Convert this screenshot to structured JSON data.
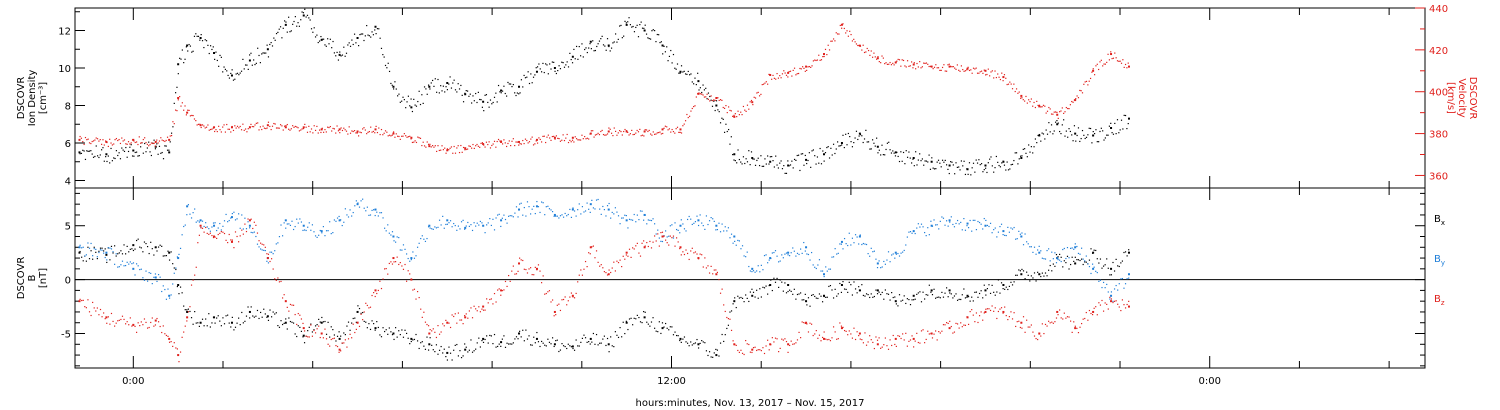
{
  "figure": {
    "xlabel": "hours:minutes, Nov. 13, 2017 – Nov. 15, 2017",
    "x_ticks": [
      "0:00",
      "12:00",
      "0:00"
    ]
  },
  "chart_data": [
    {
      "type": "scatter",
      "panel": "plasma",
      "x_unit": "hours",
      "xlim": [
        -1.3,
        28.8
      ],
      "ylabel_left": [
        "DSCOVR",
        "Ion Density",
        "[cm⁻³]"
      ],
      "ylabel_right": [
        "DSCOVR",
        "Velocity",
        "[km/s]"
      ],
      "ylim_left": [
        3.6,
        13.2
      ],
      "ylim_right": [
        354,
        440
      ],
      "yticks_left": [
        "4",
        "6",
        "8",
        "10",
        "12"
      ],
      "yticks_right": [
        "360",
        "380",
        "400",
        "420",
        "440"
      ],
      "colors": {
        "density": "#000000",
        "velocity": "#e0201c"
      },
      "series": [
        {
          "name": "density",
          "axis": "left",
          "x": [
            -1.2,
            -0.6,
            0,
            0.5,
            0.8,
            1.0,
            1.2,
            1.5,
            1.8,
            2.2,
            2.6,
            3.0,
            3.4,
            3.8,
            4.2,
            4.6,
            5.0,
            5.4,
            5.8,
            6.2,
            6.6,
            7.0,
            7.4,
            7.8,
            8.2,
            8.6,
            9.0,
            9.4,
            9.8,
            10.2,
            10.6,
            11.0,
            11.4,
            11.8,
            12.2,
            12.6,
            13.0,
            13.4,
            13.8,
            14.2,
            14.6,
            15.0,
            15.4,
            15.8,
            16.2,
            16.6,
            17.0,
            17.4,
            17.8,
            18.2,
            18.6,
            19.0,
            19.4,
            19.8,
            20.2,
            20.6,
            21.0,
            21.4,
            21.8,
            22.2
          ],
          "y": [
            5.5,
            5.4,
            5.6,
            5.8,
            5.5,
            10.2,
            11.2,
            11.6,
            10.8,
            9.6,
            10.4,
            11.0,
            12.3,
            12.8,
            11.5,
            10.7,
            11.6,
            12.2,
            9.0,
            7.9,
            9.0,
            9.2,
            8.6,
            8.2,
            8.8,
            9.0,
            9.8,
            10.0,
            10.6,
            11.4,
            11.2,
            12.3,
            12.0,
            11.2,
            9.8,
            9.3,
            8.0,
            5.4,
            5.2,
            5.0,
            4.8,
            5.1,
            5.4,
            6.0,
            6.5,
            5.8,
            5.5,
            5.2,
            5.0,
            4.8,
            4.6,
            4.8,
            5.0,
            5.2,
            6.4,
            7.0,
            6.5,
            6.4,
            6.8,
            7.3
          ]
        },
        {
          "name": "velocity",
          "axis": "right",
          "x": [
            -1.2,
            -0.6,
            0,
            0.5,
            0.8,
            1.0,
            1.2,
            1.5,
            1.8,
            2.2,
            2.6,
            3.0,
            3.4,
            3.8,
            4.2,
            4.6,
            5.0,
            5.4,
            5.8,
            6.2,
            6.6,
            7.0,
            7.4,
            7.8,
            8.2,
            8.6,
            9.0,
            9.4,
            9.8,
            10.2,
            10.6,
            11.0,
            11.4,
            11.8,
            12.2,
            12.6,
            13.0,
            13.4,
            13.8,
            14.2,
            14.6,
            15.0,
            15.4,
            15.8,
            16.2,
            16.6,
            17.0,
            17.4,
            17.8,
            18.2,
            18.6,
            19.0,
            19.4,
            19.8,
            20.2,
            20.6,
            21.0,
            21.4,
            21.8,
            22.2
          ],
          "y": [
            377,
            376,
            377,
            376,
            377,
            397,
            390,
            384,
            383,
            383,
            383,
            384,
            383,
            383,
            382,
            382,
            381,
            382,
            380,
            378,
            374,
            372,
            373,
            375,
            376,
            376,
            377,
            378,
            378,
            380,
            381,
            381,
            381,
            382,
            382,
            399,
            397,
            388,
            395,
            408,
            409,
            412,
            418,
            432,
            422,
            416,
            414,
            413,
            412,
            412,
            411,
            410,
            407,
            398,
            393,
            389,
            396,
            410,
            418,
            412
          ]
        }
      ]
    },
    {
      "type": "scatter",
      "panel": "magnetic field",
      "x_unit": "hours",
      "xlim": [
        -1.3,
        28.8
      ],
      "ylabel_left": [
        "DSCOVR",
        "B",
        "[nT]"
      ],
      "ylim": [
        -8.2,
        8.5
      ],
      "yticks": [
        "-5",
        "0",
        "5"
      ],
      "zero_line": true,
      "legend_position": "right",
      "colors": {
        "Bx": "#000000",
        "By": "#1e7ed8",
        "Bz": "#e0201c"
      },
      "series": [
        {
          "name": "Bx",
          "legend_label": "B",
          "legend_sub": "x",
          "x": [
            -1.2,
            -0.6,
            0,
            0.5,
            0.8,
            1.0,
            1.2,
            1.5,
            1.8,
            2.2,
            2.6,
            3.0,
            3.4,
            3.8,
            4.2,
            4.6,
            5.0,
            5.4,
            5.8,
            6.2,
            6.6,
            7.0,
            7.4,
            7.8,
            8.2,
            8.6,
            9.0,
            9.4,
            9.8,
            10.2,
            10.6,
            11.0,
            11.4,
            11.8,
            12.2,
            12.6,
            13.0,
            13.4,
            13.8,
            14.2,
            14.6,
            15.0,
            15.4,
            15.8,
            16.2,
            16.6,
            17.0,
            17.4,
            17.8,
            18.2,
            18.6,
            19.0,
            19.4,
            19.8,
            20.2,
            20.6,
            21.0,
            21.4,
            21.8,
            22.2
          ],
          "y": [
            2.5,
            2.3,
            3.2,
            3.0,
            2.5,
            -0.5,
            -3.0,
            -4.0,
            -3.5,
            -4.0,
            -3.0,
            -3.4,
            -4.0,
            -5.2,
            -4.0,
            -5.5,
            -3.0,
            -4.5,
            -5.0,
            -5.5,
            -6.0,
            -6.8,
            -6.5,
            -5.5,
            -5.8,
            -5.0,
            -5.5,
            -6.0,
            -6.2,
            -5.5,
            -6.0,
            -4.0,
            -3.5,
            -4.5,
            -5.5,
            -6.0,
            -7.0,
            -2.0,
            -1.5,
            -0.5,
            -0.5,
            -2.0,
            -1.5,
            -0.5,
            -1.0,
            -1.0,
            -2.0,
            -1.5,
            -1.0,
            -1.0,
            -1.5,
            -1.0,
            -0.5,
            0.5,
            0.5,
            2.0,
            1.5,
            2.5,
            1.0,
            2.5
          ]
        },
        {
          "name": "By",
          "legend_label": "B",
          "legend_sub": "y",
          "x": [
            -1.2,
            -0.6,
            0,
            0.5,
            0.8,
            1.0,
            1.2,
            1.5,
            1.8,
            2.2,
            2.6,
            3.0,
            3.4,
            3.8,
            4.2,
            4.6,
            5.0,
            5.4,
            5.8,
            6.2,
            6.6,
            7.0,
            7.4,
            7.8,
            8.2,
            8.6,
            9.0,
            9.4,
            9.8,
            10.2,
            10.6,
            11.0,
            11.4,
            11.8,
            12.2,
            12.6,
            13.0,
            13.4,
            13.8,
            14.2,
            14.6,
            15.0,
            15.4,
            15.8,
            16.2,
            16.6,
            17.0,
            17.4,
            17.8,
            18.2,
            18.6,
            19.0,
            19.4,
            19.8,
            20.2,
            20.6,
            21.0,
            21.4,
            21.8,
            22.2
          ],
          "y": [
            3.0,
            2.5,
            1.0,
            0.2,
            -1.5,
            2.0,
            6.8,
            5.5,
            5.0,
            5.8,
            5.0,
            2.0,
            5.5,
            5.0,
            4.5,
            5.5,
            7.0,
            6.5,
            4.0,
            2.0,
            5.0,
            5.5,
            4.8,
            5.0,
            5.5,
            6.5,
            6.8,
            6.0,
            6.5,
            7.0,
            6.5,
            5.5,
            6.0,
            4.0,
            5.0,
            5.5,
            5.0,
            4.0,
            1.0,
            2.0,
            2.5,
            3.0,
            0.5,
            3.5,
            4.0,
            1.5,
            2.5,
            4.5,
            5.0,
            5.5,
            5.2,
            5.0,
            4.5,
            4.0,
            2.5,
            2.0,
            3.0,
            1.0,
            -1.5,
            0.5
          ]
        },
        {
          "name": "Bz",
          "legend_label": "B",
          "legend_sub": "z",
          "x": [
            -1.2,
            -0.6,
            0,
            0.5,
            0.8,
            1.0,
            1.2,
            1.5,
            1.8,
            2.2,
            2.6,
            3.0,
            3.4,
            3.8,
            4.2,
            4.6,
            5.0,
            5.4,
            5.8,
            6.2,
            6.6,
            7.0,
            7.4,
            7.8,
            8.2,
            8.6,
            9.0,
            9.4,
            9.8,
            10.2,
            10.6,
            11.0,
            11.4,
            11.8,
            12.2,
            12.6,
            13.0,
            13.4,
            13.8,
            14.2,
            14.6,
            15.0,
            15.4,
            15.8,
            16.2,
            16.6,
            17.0,
            17.4,
            17.8,
            18.2,
            18.6,
            19.0,
            19.4,
            19.8,
            20.2,
            20.6,
            21.0,
            21.4,
            21.8,
            22.2
          ],
          "y": [
            -2.0,
            -3.5,
            -4.2,
            -3.8,
            -5.5,
            -7.0,
            -3.5,
            5.0,
            4.0,
            3.5,
            5.5,
            2.0,
            -2.0,
            -4.5,
            -5.0,
            -6.5,
            -4.0,
            -1.0,
            2.0,
            0.0,
            -5.0,
            -4.0,
            -3.5,
            -2.5,
            -1.0,
            1.5,
            1.0,
            -3.0,
            -1.5,
            3.0,
            0.5,
            2.5,
            3.0,
            4.0,
            3.0,
            2.0,
            0.5,
            -6.0,
            -6.5,
            -6.0,
            -6.0,
            -4.0,
            -5.5,
            -4.5,
            -5.0,
            -6.0,
            -5.5,
            -5.5,
            -5.0,
            -4.5,
            -3.5,
            -3.0,
            -3.0,
            -4.0,
            -5.0,
            -3.0,
            -4.5,
            -3.0,
            -2.0,
            -2.5
          ]
        }
      ]
    }
  ]
}
